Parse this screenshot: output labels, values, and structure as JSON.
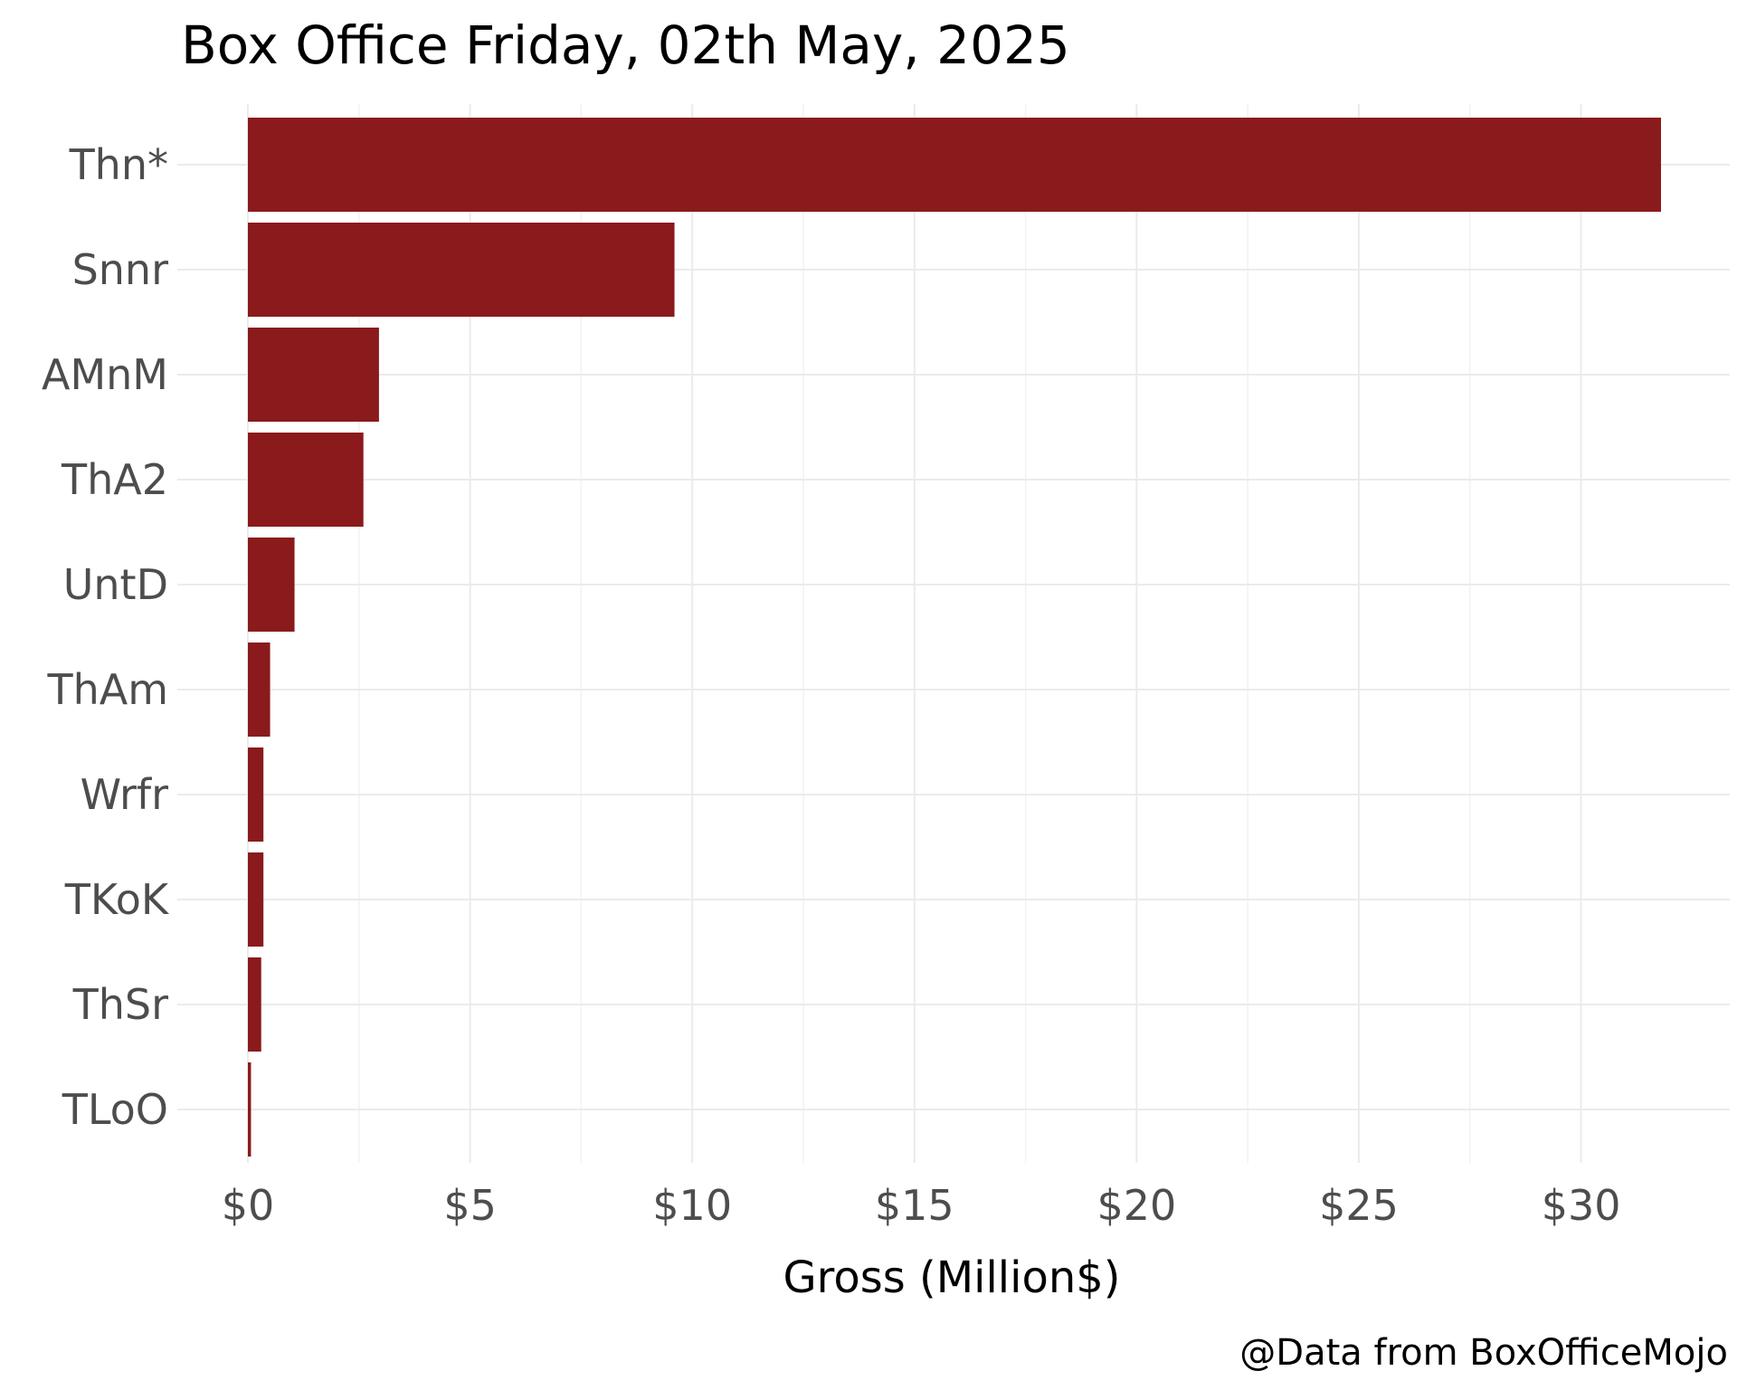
{
  "chart_data": {
    "type": "bar",
    "orientation": "horizontal",
    "title": "Box Office Friday, 02th May, 2025",
    "xlabel": "Gross (Million$)",
    "ylabel": "",
    "caption": "@Data from BoxOfficeMojo",
    "categories": [
      "Thn*",
      "Snnr",
      "AMnM",
      "ThA2",
      "UntD",
      "ThAm",
      "Wrfr",
      "TKoK",
      "ThSr",
      "TLoO"
    ],
    "values": [
      31.8,
      9.6,
      2.95,
      2.6,
      1.05,
      0.5,
      0.35,
      0.35,
      0.3,
      0.07
    ],
    "xlim": [
      0,
      32
    ],
    "x_ticks": [
      0,
      5,
      10,
      15,
      20,
      25,
      30
    ],
    "x_tick_labels": [
      "$0",
      "$5",
      "$10",
      "$15",
      "$20",
      "$25",
      "$30"
    ],
    "bar_color": "#8b1a1c",
    "grid": true,
    "legend": "none"
  }
}
